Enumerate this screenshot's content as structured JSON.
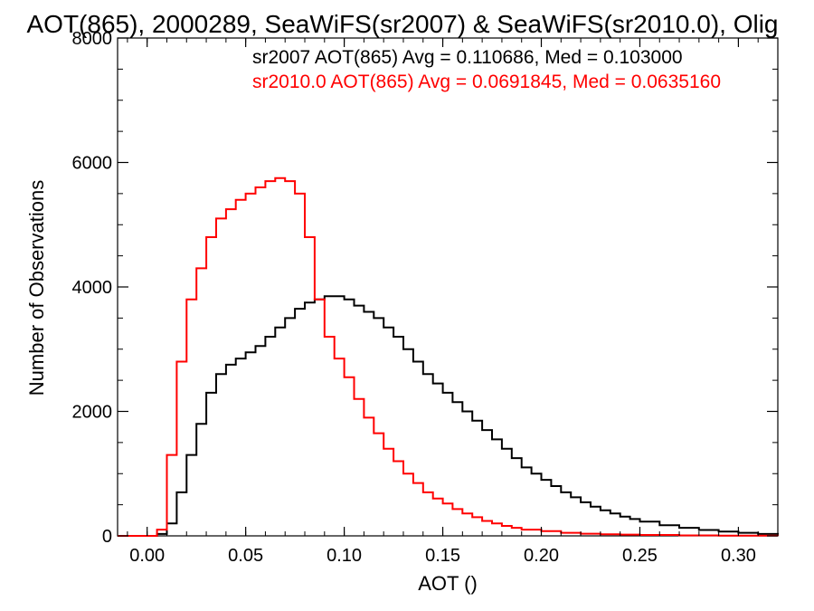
{
  "chart_data": {
    "type": "line",
    "title": "AOT(865), 2000289, SeaWiFS(sr2007) & SeaWiFS(sr2010.0), Olig",
    "xlabel": "AOT ()",
    "ylabel": "Number of Observations",
    "xlim": [
      -0.015,
      0.32
    ],
    "ylim": [
      0,
      8000
    ],
    "xticks": [
      0.0,
      0.05,
      0.1,
      0.15,
      0.2,
      0.25,
      0.3
    ],
    "xtick_labels": [
      "0.00",
      "0.05",
      "0.10",
      "0.15",
      "0.20",
      "0.25",
      "0.30"
    ],
    "yticks": [
      0,
      2000,
      4000,
      6000,
      8000
    ],
    "ytick_labels": [
      "0",
      "2000",
      "4000",
      "6000",
      "8000"
    ],
    "grid": false,
    "step": true,
    "annotations": [
      {
        "text": "sr2007 AOT(865) Avg = 0.110686, Med = 0.103000",
        "color": "#000000"
      },
      {
        "text": "sr2010.0 AOT(865) Avg = 0.0691845, Med = 0.0635160",
        "color": "#ff0000"
      }
    ],
    "series": [
      {
        "color": "#000000",
        "x": [
          -0.015,
          0.0,
          0.005,
          0.01,
          0.015,
          0.02,
          0.025,
          0.03,
          0.035,
          0.04,
          0.045,
          0.05,
          0.055,
          0.06,
          0.065,
          0.07,
          0.075,
          0.08,
          0.085,
          0.09,
          0.095,
          0.1,
          0.105,
          0.11,
          0.115,
          0.12,
          0.125,
          0.13,
          0.135,
          0.14,
          0.145,
          0.15,
          0.155,
          0.16,
          0.165,
          0.17,
          0.175,
          0.18,
          0.185,
          0.19,
          0.195,
          0.2,
          0.205,
          0.21,
          0.215,
          0.22,
          0.225,
          0.23,
          0.235,
          0.24,
          0.245,
          0.25,
          0.26,
          0.27,
          0.28,
          0.29,
          0.3,
          0.31,
          0.32
        ],
        "y": [
          0,
          0,
          30,
          200,
          700,
          1300,
          1800,
          2300,
          2600,
          2750,
          2850,
          2950,
          3050,
          3200,
          3350,
          3500,
          3650,
          3750,
          3800,
          3850,
          3850,
          3800,
          3700,
          3600,
          3500,
          3350,
          3200,
          3000,
          2800,
          2600,
          2450,
          2300,
          2150,
          2000,
          1850,
          1700,
          1550,
          1400,
          1250,
          1100,
          1000,
          900,
          800,
          700,
          620,
          540,
          470,
          410,
          360,
          310,
          270,
          230,
          170,
          130,
          95,
          70,
          50,
          30,
          20
        ]
      },
      {
        "color": "#ff0000",
        "x": [
          -0.015,
          0.0,
          0.005,
          0.01,
          0.015,
          0.02,
          0.025,
          0.03,
          0.035,
          0.04,
          0.045,
          0.05,
          0.055,
          0.06,
          0.065,
          0.07,
          0.075,
          0.08,
          0.085,
          0.09,
          0.095,
          0.1,
          0.105,
          0.11,
          0.115,
          0.12,
          0.125,
          0.13,
          0.135,
          0.14,
          0.145,
          0.15,
          0.155,
          0.16,
          0.165,
          0.17,
          0.175,
          0.18,
          0.185,
          0.19,
          0.2,
          0.21,
          0.22,
          0.23,
          0.24,
          0.25,
          0.27,
          0.29,
          0.32
        ],
        "y": [
          0,
          0,
          100,
          1300,
          2800,
          3800,
          4300,
          4800,
          5100,
          5250,
          5400,
          5500,
          5600,
          5700,
          5750,
          5700,
          5500,
          4800,
          3800,
          3200,
          2850,
          2550,
          2200,
          1900,
          1650,
          1400,
          1200,
          1000,
          850,
          700,
          600,
          520,
          430,
          360,
          300,
          240,
          200,
          160,
          130,
          100,
          75,
          50,
          35,
          25,
          20,
          15,
          8,
          5,
          0
        ]
      }
    ]
  }
}
